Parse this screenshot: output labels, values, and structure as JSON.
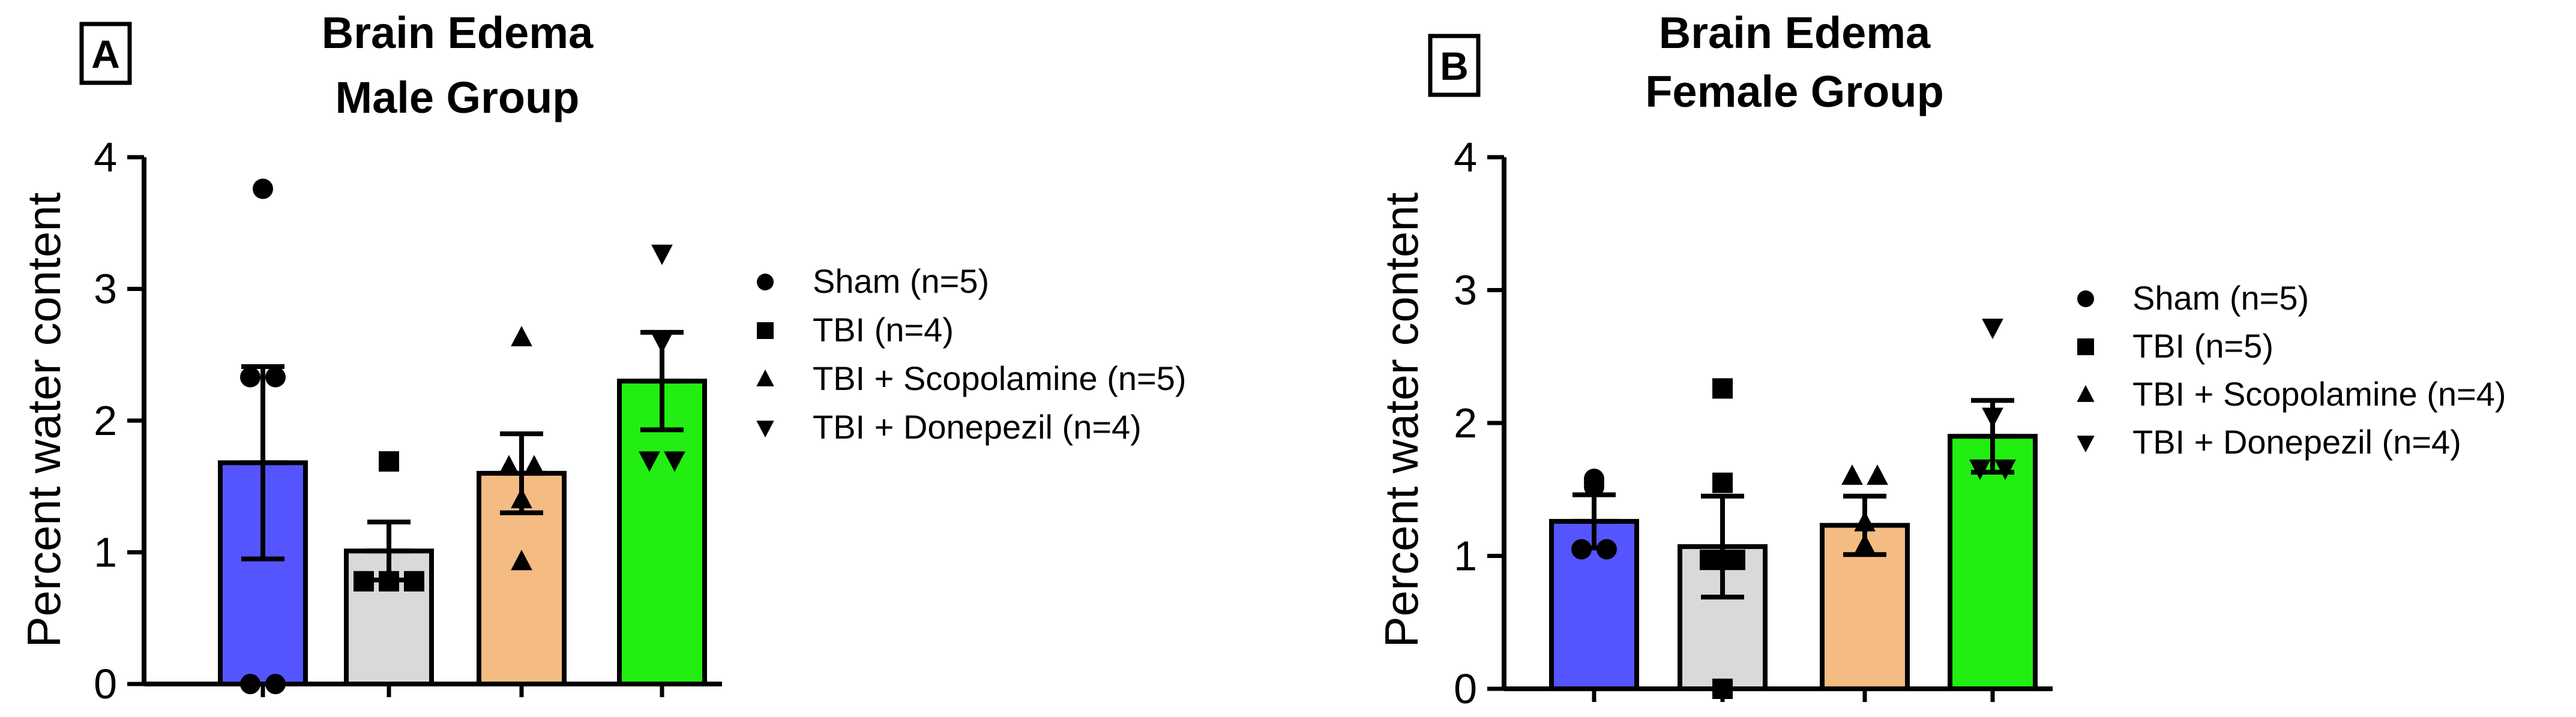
{
  "chart_data": [
    {
      "type": "bar",
      "panel_label": "A",
      "title_line1": "Brain Edema",
      "title_line2": "Male Group",
      "ylabel": "Percent water content",
      "ylim": [
        0,
        4
      ],
      "yticks": [
        "0",
        "1",
        "2",
        "3",
        "4"
      ],
      "series": [
        {
          "name": "Sham (n=5)",
          "color": "#5555ff",
          "marker": "circle",
          "mean": 1.68,
          "sem": 0.73,
          "points": [
            3.76,
            2.33,
            2.33,
            0.0,
            0.0
          ]
        },
        {
          "name": "TBI (n=4)",
          "color": "#d9d9d9",
          "marker": "square",
          "mean": 1.01,
          "sem": 0.22,
          "points": [
            1.69,
            0.78,
            0.78,
            0.78
          ]
        },
        {
          "name": "TBI + Scopolamine (n=5)",
          "color": "#f4bb83",
          "marker": "triangle-up",
          "mean": 1.6,
          "sem": 0.3,
          "points": [
            2.63,
            1.65,
            1.65,
            1.4,
            0.93
          ]
        },
        {
          "name": "TBI + Donepezil (n=4)",
          "color": "#22ee11",
          "marker": "triangle-down",
          "mean": 2.3,
          "sem": 0.37,
          "points": [
            3.27,
            2.6,
            1.7,
            1.7
          ]
        }
      ]
    },
    {
      "type": "bar",
      "panel_label": "B",
      "title_line1": "Brain Edema",
      "title_line2": "Female Group",
      "ylabel": "Percent water content",
      "ylim": [
        0,
        4
      ],
      "yticks": [
        "0",
        "1",
        "2",
        "3",
        "4"
      ],
      "series": [
        {
          "name": "Sham (n=5)",
          "color": "#5555ff",
          "marker": "circle",
          "mean": 1.26,
          "sem": 0.2,
          "points": [
            1.58,
            1.55,
            1.52,
            1.05,
            1.05
          ]
        },
        {
          "name": "TBI (n=5)",
          "color": "#d9d9d9",
          "marker": "square",
          "mean": 1.07,
          "sem": 0.38,
          "points": [
            2.26,
            1.55,
            0.97,
            0.97,
            0.0
          ]
        },
        {
          "name": "TBI + Scopolamine (n=4)",
          "color": "#f4bb83",
          "marker": "triangle-up",
          "mean": 1.23,
          "sem": 0.22,
          "points": [
            1.6,
            1.6,
            1.25,
            1.08
          ]
        },
        {
          "name": "TBI + Donepezil (n=4)",
          "color": "#22ee11",
          "marker": "triangle-down",
          "mean": 1.9,
          "sem": 0.27,
          "points": [
            2.72,
            2.05,
            1.66,
            1.66
          ]
        }
      ]
    }
  ]
}
